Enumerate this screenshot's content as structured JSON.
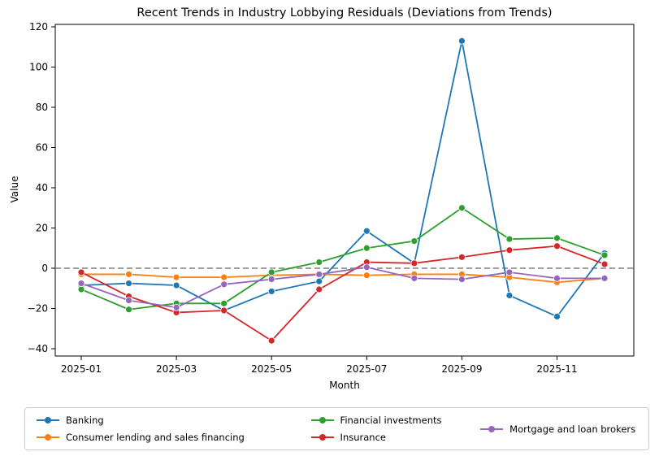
{
  "chart_data": {
    "type": "line",
    "title": "Recent Trends in Industry Lobbying Residuals (Deviations from Trends)",
    "xlabel": "Month",
    "ylabel": "Value",
    "x": [
      "2025-01",
      "2025-02",
      "2025-03",
      "2025-04",
      "2025-05",
      "2025-06",
      "2025-07",
      "2025-08",
      "2025-09",
      "2025-10",
      "2025-11",
      "2025-12"
    ],
    "x_tick_labels": [
      "2025-01",
      "2025-03",
      "2025-05",
      "2025-07",
      "2025-09",
      "2025-11"
    ],
    "yticks": [
      -40,
      -20,
      0,
      20,
      40,
      60,
      80,
      100,
      120
    ],
    "ylim": [
      -43.6,
      121.2
    ],
    "grid": false,
    "zero_line": {
      "y": 0,
      "style": "dashed",
      "color": "#808080"
    },
    "legend_position": "bottom",
    "legend_columns": [
      [
        0,
        1
      ],
      [
        2,
        3
      ],
      [
        4
      ]
    ],
    "marker": "circle",
    "series": [
      {
        "name": "Banking",
        "color": "#1f77b4",
        "values": [
          -8.5,
          -7.5,
          -8.5,
          -21,
          -11.5,
          -6.5,
          18.5,
          2.5,
          113,
          -13.5,
          -24,
          7.5
        ]
      },
      {
        "name": "Consumer lending and sales financing",
        "color": "#ff7f0e",
        "values": [
          -3,
          -3,
          -4.5,
          -4.5,
          -3.5,
          -3,
          -3.5,
          -3,
          -3,
          -4.5,
          -7,
          -5
        ]
      },
      {
        "name": "Financial investments",
        "color": "#2ca02c",
        "values": [
          -10.5,
          -20.5,
          -17.5,
          -17.5,
          -2,
          3,
          10,
          13.5,
          30,
          14.5,
          15,
          6.5
        ]
      },
      {
        "name": "Insurance",
        "color": "#d62728",
        "values": [
          -2,
          -14,
          -22,
          -21,
          -36,
          -10.5,
          3,
          2.5,
          5.5,
          9,
          11,
          2
        ]
      },
      {
        "name": "Mortgage and loan brokers",
        "color": "#9467bd",
        "values": [
          -7.5,
          -16,
          -19.5,
          -8,
          -5.5,
          -3,
          0.5,
          -5,
          -5.5,
          -2,
          -5,
          -5
        ]
      }
    ]
  }
}
